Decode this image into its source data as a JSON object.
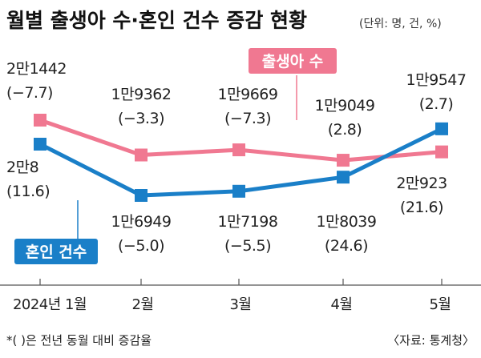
{
  "title": "월별 출생아 수·혼인 건수 증감 현황",
  "unit_note": "(단위: 명, 건, %)",
  "footnote": "*(   )은 전년 동월 대비 증감율",
  "source": "〈자료: 통계청〉",
  "colors": {
    "births": "#f07891",
    "marriages": "#1a7fc8"
  },
  "chart_data": {
    "type": "line",
    "categories": [
      "2024년 1월",
      "2월",
      "3월",
      "4월",
      "5월"
    ],
    "series": [
      {
        "name": "출생아 수",
        "values": [
          21442,
          19362,
          19669,
          19049,
          19547
        ],
        "value_labels": [
          "2만1442",
          "1만9362",
          "1만9669",
          "1만9049",
          "1만9547"
        ],
        "change_labels": [
          "(−7.7)",
          "(−3.3)",
          "(−7.3)",
          "(2.8)",
          "(2.7)"
        ]
      },
      {
        "name": "혼인 건수",
        "values": [
          20008,
          16949,
          17198,
          18039,
          20923
        ],
        "value_labels": [
          "2만8",
          "1만6949",
          "1만7198",
          "1만8039",
          "2만923"
        ],
        "change_labels": [
          "(11.6)",
          "(−5.0)",
          "(−5.5)",
          "(24.6)",
          "(21.6)"
        ]
      }
    ]
  }
}
